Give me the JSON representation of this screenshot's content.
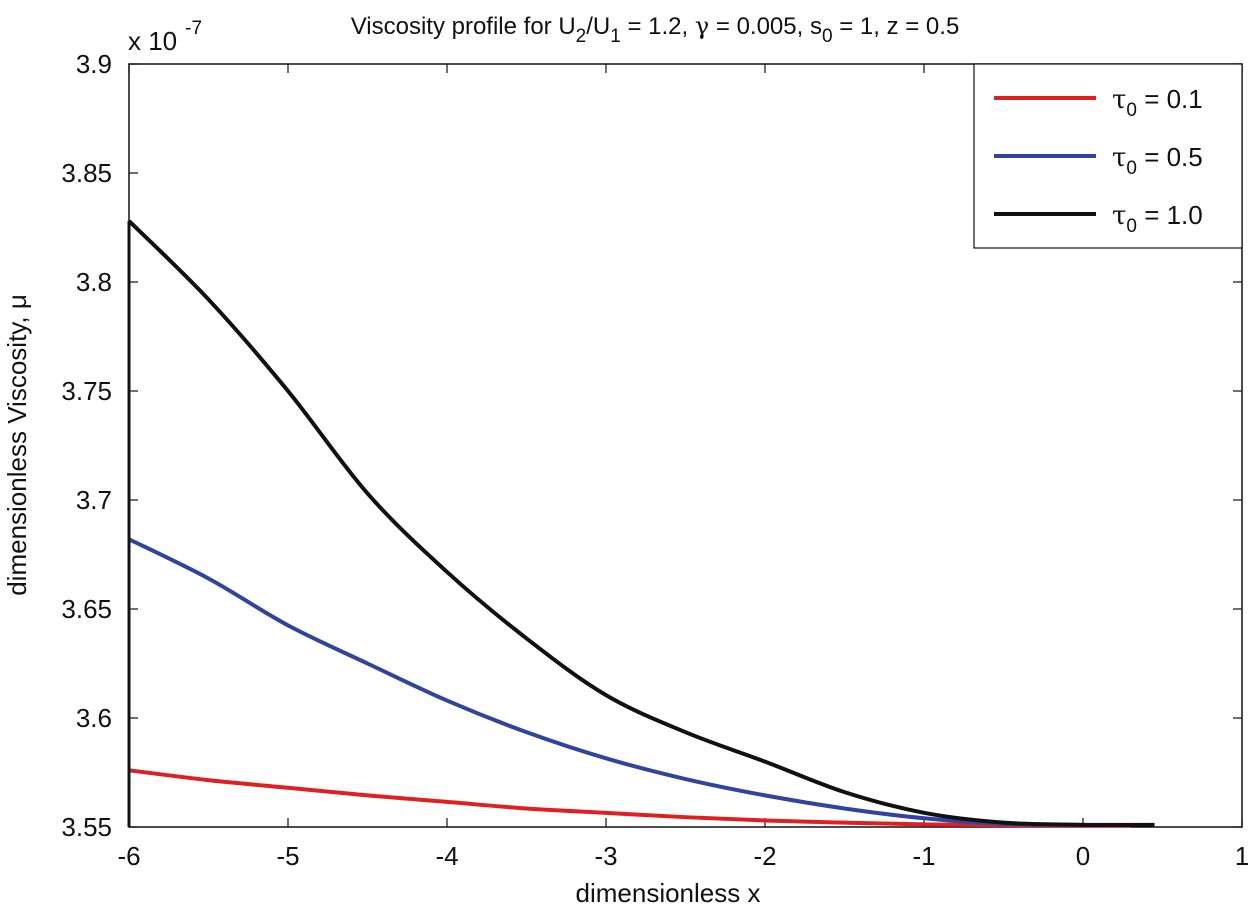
{
  "chart_data": {
    "type": "line",
    "title": {
      "prefix": "Viscosity profile for U",
      "sub1": "2",
      "mid1": "/U",
      "sub2": "1",
      "mid2": " = 1.2, ",
      "gamma": "γ",
      "mid3": " = 0.005, s",
      "sub3": "0",
      "suffix": " = 1, z = 0.5"
    },
    "xlabel": "dimensionless x",
    "ylabel": "dimensionless Viscosity, μ",
    "y_multiplier": {
      "base": "x 10",
      "exponent": "-7"
    },
    "xlim": [
      -6,
      1
    ],
    "ylim": [
      3.55,
      3.9
    ],
    "xticks": [
      -6,
      -5,
      -4,
      -3,
      -2,
      -1,
      0,
      1
    ],
    "xtick_labels": [
      "-6",
      "-5",
      "-4",
      "-3",
      "-2",
      "-1",
      "0",
      "1"
    ],
    "yticks": [
      3.55,
      3.6,
      3.65,
      3.7,
      3.75,
      3.8,
      3.85,
      3.9
    ],
    "ytick_labels": [
      "3.55",
      "3.6",
      "3.65",
      "3.7",
      "3.75",
      "3.8",
      "3.85",
      "3.9"
    ],
    "legend_position": "top-right",
    "series": [
      {
        "name": "τ0 = 0.1",
        "legend_symbol": "τ",
        "legend_sub": "0",
        "legend_value": " = 0.1",
        "color": "#e02020",
        "x": [
          -6,
          -5.5,
          -5,
          -4.5,
          -4,
          -3.5,
          -3,
          -2.5,
          -2,
          -1.5,
          -1,
          -0.5,
          0,
          0.3
        ],
        "y": [
          3.576,
          3.5715,
          3.568,
          3.5645,
          3.5615,
          3.5585,
          3.5565,
          3.5545,
          3.553,
          3.552,
          3.5512,
          3.5508,
          3.5507,
          3.5507
        ]
      },
      {
        "name": "τ0 = 0.5",
        "legend_symbol": "τ",
        "legend_sub": "0",
        "legend_value": " = 0.5",
        "color": "#2e44a0",
        "x": [
          -6,
          -5.5,
          -5,
          -4.5,
          -4,
          -3.5,
          -3,
          -2.5,
          -2,
          -1.5,
          -1,
          -0.5,
          0,
          0.3
        ],
        "y": [
          3.682,
          3.664,
          3.6425,
          3.625,
          3.608,
          3.5935,
          3.5815,
          3.572,
          3.5645,
          3.5585,
          3.554,
          3.5515,
          3.551,
          3.551
        ]
      },
      {
        "name": "τ0 = 1.0",
        "legend_symbol": "τ",
        "legend_sub": "0",
        "legend_value": " = 1.0",
        "color": "#111111",
        "x": [
          -6,
          -5.5,
          -5,
          -4.5,
          -4,
          -3.5,
          -3,
          -2.5,
          -2,
          -1.5,
          -1,
          -0.5,
          0,
          0.45
        ],
        "y": [
          3.828,
          3.792,
          3.75,
          3.703,
          3.667,
          3.6365,
          3.6105,
          3.5935,
          3.58,
          3.566,
          3.5565,
          3.552,
          3.551,
          3.551
        ]
      }
    ]
  }
}
